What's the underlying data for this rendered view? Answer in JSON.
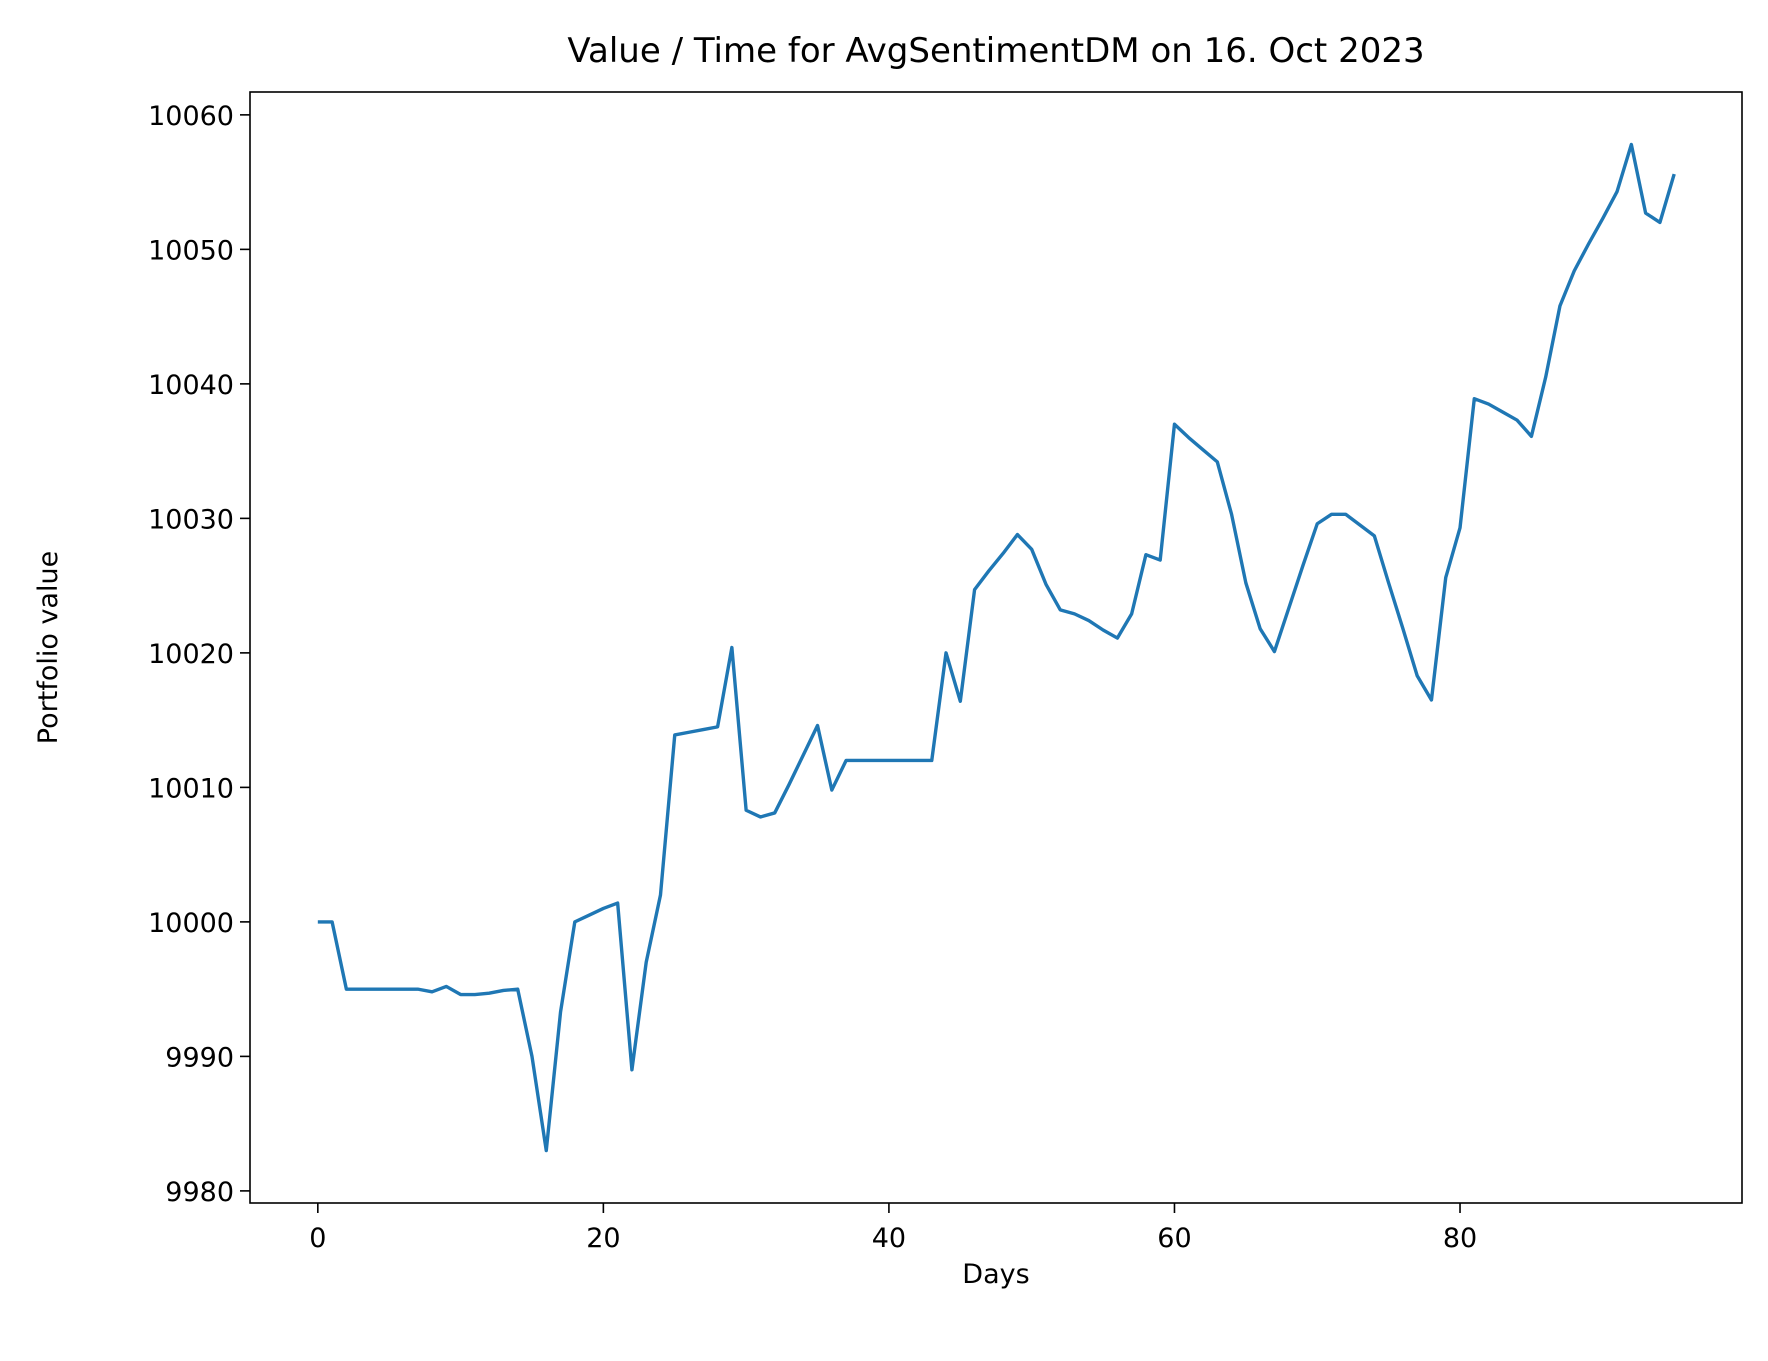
{
  "chart_data": {
    "type": "line",
    "title": "Value / Time for AvgSentimentDM on 16. Oct 2023",
    "xlabel": "Days",
    "ylabel": "Portfolio value",
    "xlim": [
      -4.75,
      99.75
    ],
    "ylim": [
      9979.1,
      10061.7
    ],
    "xticks": [
      0,
      20,
      40,
      60,
      80
    ],
    "yticks": [
      9980,
      9990,
      10000,
      10010,
      10020,
      10030,
      10040,
      10050,
      10060
    ],
    "grid": false,
    "legend": "none",
    "colors": {
      "line": "#1f77b4"
    },
    "series": [
      {
        "x": [
          0,
          1,
          2,
          3,
          4,
          5,
          6,
          7,
          8,
          9,
          10,
          11,
          12,
          13,
          14,
          15,
          16,
          17,
          18,
          19,
          20,
          21,
          22,
          23,
          24,
          25,
          26,
          27,
          28,
          29,
          30,
          31,
          32,
          33,
          34,
          35,
          36,
          37,
          38,
          39,
          40,
          41,
          42,
          43,
          44,
          45,
          46,
          47,
          48,
          49,
          50,
          51,
          52,
          53,
          54,
          55,
          56,
          57,
          58,
          59,
          60,
          61,
          62,
          63,
          64,
          65,
          66,
          67,
          68,
          69,
          70,
          71,
          72,
          73,
          74,
          75,
          76,
          77,
          78,
          79,
          80,
          81,
          82,
          83,
          84,
          85,
          86,
          87,
          88,
          89,
          90,
          91,
          92,
          93,
          94,
          95
        ],
        "values": [
          10000,
          10000,
          9995,
          9995,
          9995,
          9995,
          9995,
          9995,
          9994.8,
          9995.2,
          9994.6,
          9994.6,
          9994.7,
          9994.9,
          9995,
          9990,
          9983,
          9993.3,
          10000,
          10000.5,
          10001,
          10001.4,
          9989,
          9997,
          10002,
          10013.9,
          10014.1,
          10014.3,
          10014.5,
          10020.4,
          10008.3,
          10007.8,
          10008.1,
          10010.2,
          10012.4,
          10014.6,
          10009.8,
          10012,
          10012,
          10012,
          10012,
          10012,
          10012,
          10012,
          10020,
          10016.4,
          10024.7,
          10026.1,
          10027.4,
          10028.8,
          10027.7,
          10025.1,
          10023.2,
          10022.9,
          10022.4,
          10021.7,
          10021.1,
          10022.9,
          10027.3,
          10026.9,
          10037,
          10036,
          10035.1,
          10034.2,
          10030.3,
          10025.2,
          10021.8,
          10020.1,
          10023.3,
          10026.5,
          10029.6,
          10030.3,
          10030.3,
          10029.5,
          10028.7,
          10025.2,
          10021.8,
          10018.3,
          10016.5,
          10025.6,
          10029.3,
          10038.9,
          10038.5,
          10037.9,
          10037.3,
          10036.1,
          10040.5,
          10045.8,
          10048.4,
          10050.4,
          10052.3,
          10054.3,
          10057.8,
          10052.7,
          10052,
          10055.6
        ]
      }
    ]
  }
}
